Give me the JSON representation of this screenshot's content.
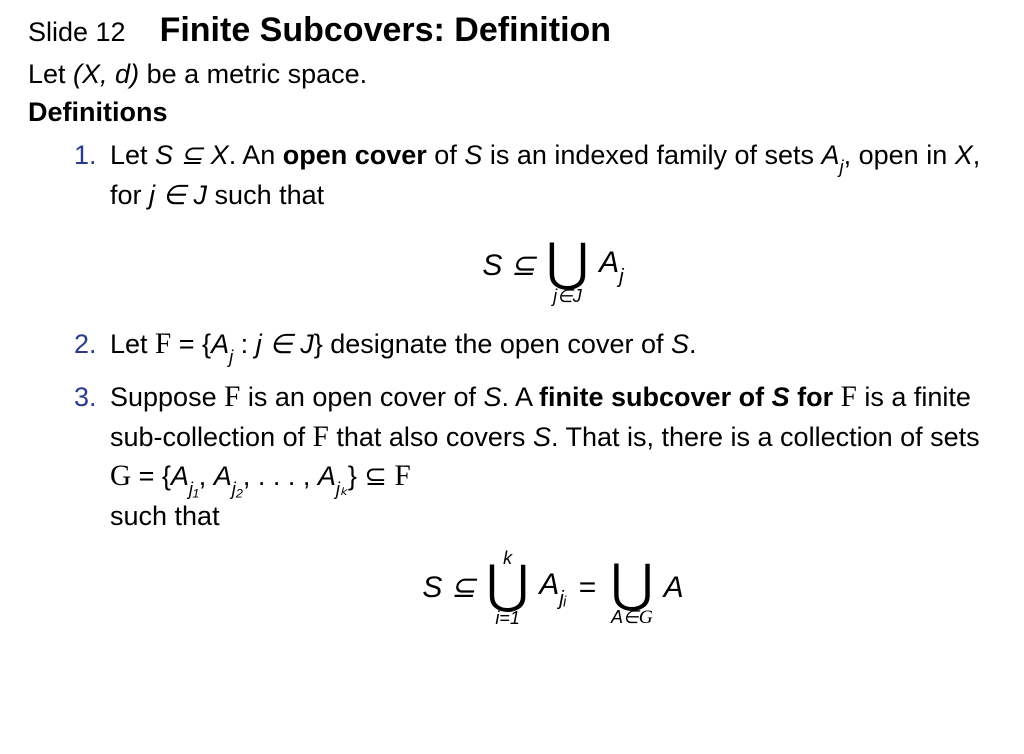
{
  "colors": {
    "text": "#000000",
    "list_number": "#2a3a8f",
    "background": "#ffffff"
  },
  "typography": {
    "body_fontsize_pt": 20,
    "title_fontsize_pt": 26,
    "math_display_fontsize_pt": 22,
    "limit_fontsize_pt": 13,
    "font_family": "sans-serif"
  },
  "header": {
    "slide_label": "Slide 12",
    "title": "Finite Subcovers: Definition"
  },
  "intro": {
    "let": "Let ",
    "space": "(X, d)",
    "rest": " be a metric space."
  },
  "definitions_heading": "Definitions",
  "def1": {
    "p1a": "Let ",
    "p1b": "S ⊆ X",
    "p1c": ". An ",
    "p1d": "open cover",
    "p1e": " of ",
    "p1f": "S",
    "p1g": " is an indexed family of sets ",
    "p2a": "A",
    "p2a_sub": "j",
    "p2b": ", open in ",
    "p2c": "X",
    "p2d": ", for ",
    "p2e": "j ∈ J",
    "p2f": " such that",
    "eq": {
      "lhs": "S ⊆",
      "op": "⋃",
      "under": "j∈J",
      "rhs": "A",
      "rhs_sub": "j"
    }
  },
  "def2": {
    "a": "Let ",
    "F": "F",
    "b": " = {",
    "c": "A",
    "c_sub": "j",
    "d": " : ",
    "e": "j ∈ J",
    "f": "} designate the open cover of ",
    "g": "S",
    "h": "."
  },
  "def3": {
    "l1a": "Suppose ",
    "F": "F",
    "l1b": " is an open cover of ",
    "l1c": "S",
    "l1d": ". A ",
    "l1e": "finite subcover of ",
    "l1e2": "S",
    "l2a": "for ",
    "l2b": " is a finite sub-collection of ",
    "l2c": " that also covers ",
    "l2d": "S",
    "l2e": ". That ",
    "l3a": "is, there is a collection of sets ",
    "G": "G",
    "l3b": " = {",
    "A": "A",
    "j1": "j₁",
    "sep": ", ",
    "j2": "j₂",
    "dots": ", . . . , ",
    "jk": "jₖ",
    "l3c": "} ⊆ ",
    "l4": "such that",
    "eq": {
      "lhs": "S ⊆",
      "op": "⋃",
      "over1": "k",
      "under1": "i=1",
      "mid": "A",
      "mid_sub": "jᵢ",
      "eq": "=",
      "under2": "A∈G",
      "rhs": "A"
    }
  }
}
